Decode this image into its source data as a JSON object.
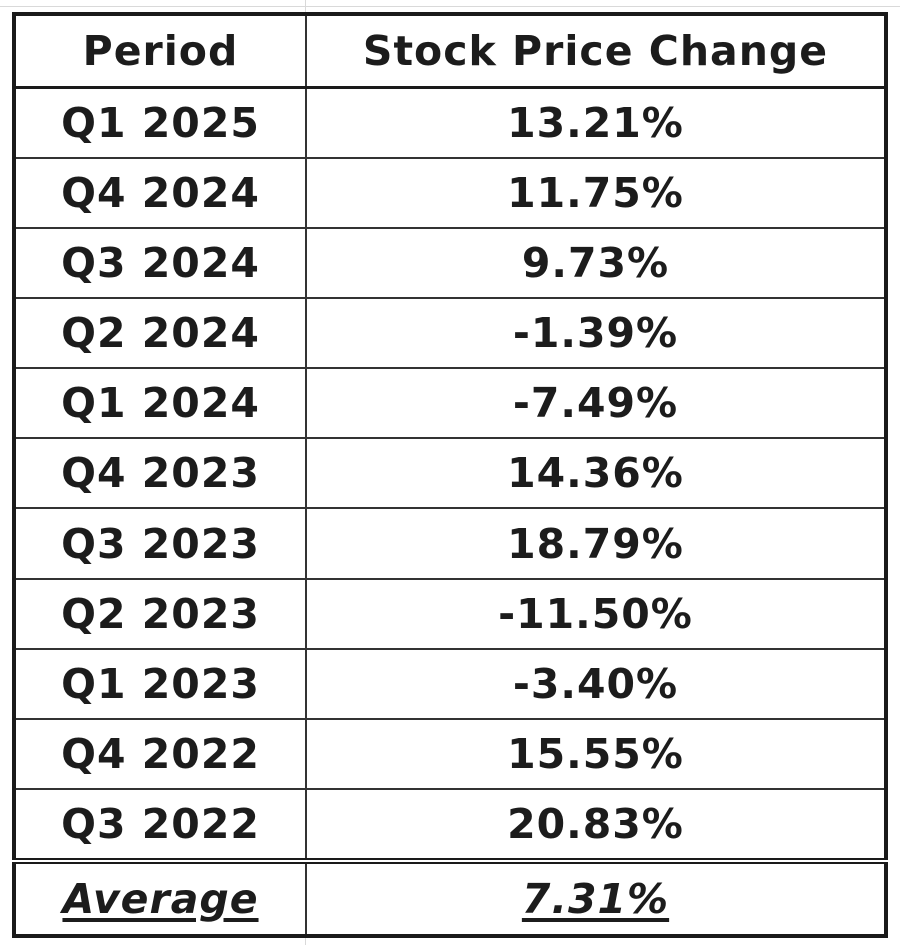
{
  "table": {
    "headers": {
      "period": "Period",
      "change": "Stock Price Change"
    },
    "rows": [
      {
        "period": "Q1 2025",
        "change": "13.21%"
      },
      {
        "period": "Q4 2024",
        "change": "11.75%"
      },
      {
        "period": "Q3 2024",
        "change": "9.73%"
      },
      {
        "period": "Q2 2024",
        "change": "-1.39%"
      },
      {
        "period": "Q1 2024",
        "change": "-7.49%"
      },
      {
        "period": "Q4 2023",
        "change": "14.36%"
      },
      {
        "period": "Q3 2023",
        "change": "18.79%"
      },
      {
        "period": "Q2 2023",
        "change": "-11.50%"
      },
      {
        "period": "Q1 2023",
        "change": "-3.40%"
      },
      {
        "period": "Q4 2022",
        "change": "15.55%"
      },
      {
        "period": "Q3 2022",
        "change": "20.83%"
      }
    ],
    "footer": {
      "label": "Average",
      "value": "7.31%"
    }
  }
}
